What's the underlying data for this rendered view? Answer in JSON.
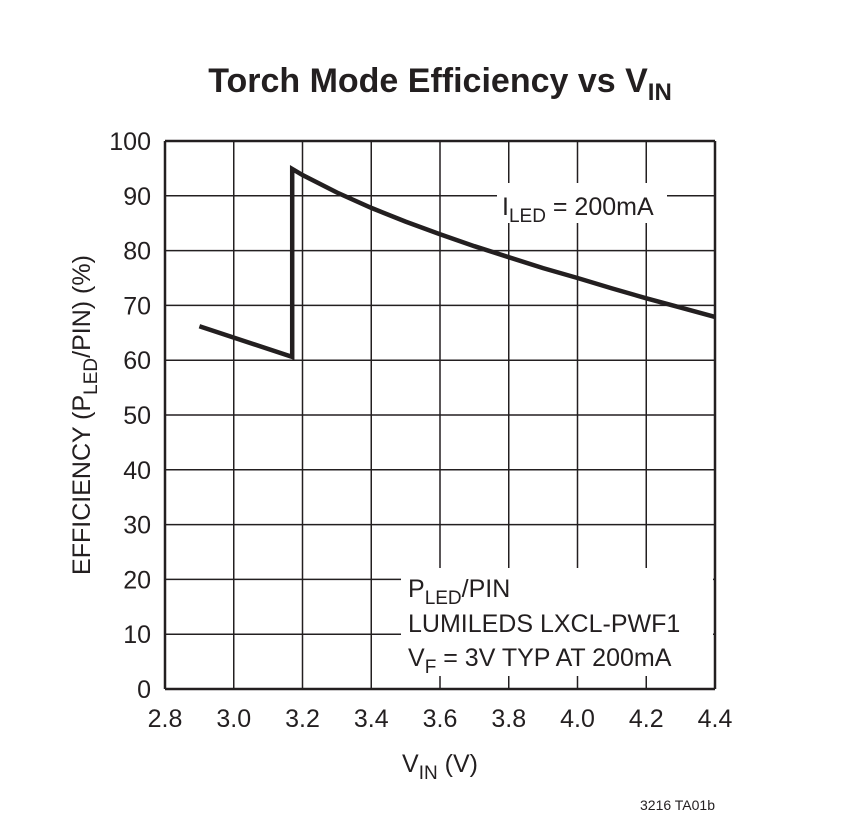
{
  "chart_data": {
    "type": "line",
    "title": {
      "main": "Torch Mode Efficiency vs V",
      "sub": "IN"
    },
    "xlabel": {
      "main": "V",
      "sub": "IN",
      "suffix": " (V)"
    },
    "ylabel": {
      "pre": "EFFICIENCY (P",
      "sub": "LED",
      "post": "/PIN) (%)"
    },
    "xlim": [
      2.8,
      4.4
    ],
    "ylim": [
      0,
      100
    ],
    "xticks": [
      "2.8",
      "3.0",
      "3.2",
      "3.4",
      "3.6",
      "3.8",
      "4.0",
      "4.2",
      "4.4"
    ],
    "yticks": [
      "0",
      "10",
      "20",
      "30",
      "40",
      "50",
      "60",
      "70",
      "80",
      "90",
      "100"
    ],
    "grid": true,
    "line_color": "#231f20",
    "series": [
      {
        "x": [
          2.9,
          3.17,
          3.17,
          3.2,
          3.3,
          3.4,
          3.5,
          3.6,
          3.7,
          3.8,
          3.9,
          4.0,
          4.1,
          4.2,
          4.3,
          4.4
        ],
        "y": [
          66.2,
          60.6,
          94.9,
          93.8,
          90.6,
          87.8,
          85.3,
          83.0,
          80.8,
          78.8,
          76.8,
          75.0,
          73.1,
          71.3,
          69.6,
          67.9
        ]
      }
    ],
    "annotations": {
      "iled": {
        "main": "I",
        "sub": "LED",
        "post": " = 200mA"
      },
      "legend_line1": {
        "main": "P",
        "sub": "LED",
        "post": "/PIN"
      },
      "legend_line2": "LUMILEDS LXCL-PWF1",
      "legend_line3": {
        "main": "V",
        "sub": "F",
        "post": " = 3V TYP AT 200mA"
      }
    },
    "footnote": "3216 TA01b"
  }
}
